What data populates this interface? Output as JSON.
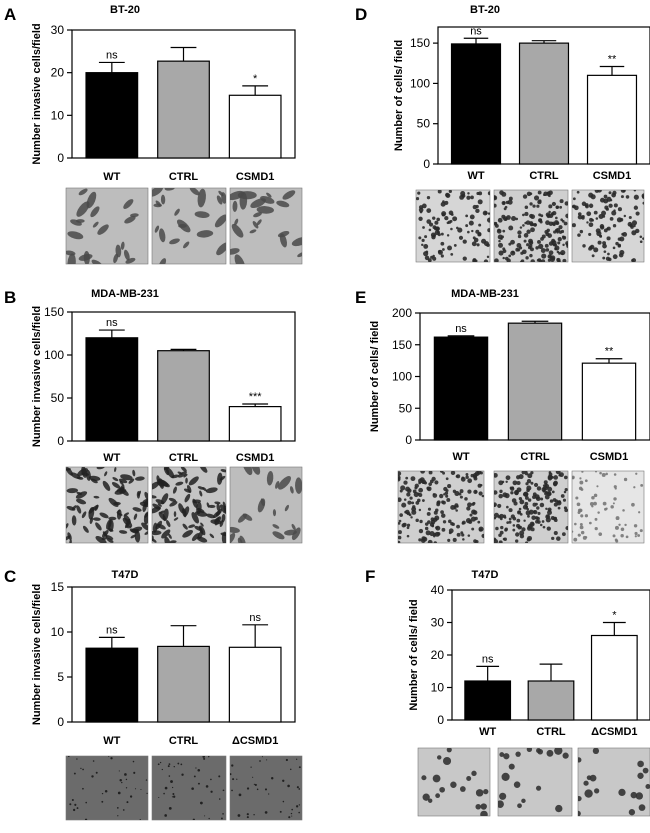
{
  "chart_data": [
    {
      "type": "bar",
      "panel": "A",
      "title": "BT-20",
      "ylabel": "Number invasive cells/field",
      "categories": [
        "WT",
        "CTRL",
        "CSMD1"
      ],
      "values": [
        20,
        22.7,
        14.7
      ],
      "errors": [
        2.4,
        3.2,
        2.2
      ],
      "significance": [
        "ns",
        "",
        "*"
      ],
      "ylim": [
        0,
        30
      ],
      "yticks": [
        0,
        10,
        20,
        30
      ],
      "colors": [
        "#000000",
        "#a8a8a8",
        "#ffffff"
      ],
      "micrograph_style": [
        "invasive",
        "invasive",
        "invasive"
      ]
    },
    {
      "type": "bar",
      "panel": "B",
      "title": "MDA-MB-231",
      "ylabel": "Number invasive cells/field",
      "categories": [
        "WT",
        "CTRL",
        "CSMD1"
      ],
      "values": [
        120,
        105,
        40
      ],
      "errors": [
        9,
        1.5,
        3
      ],
      "significance": [
        "ns",
        "",
        "***"
      ],
      "ylim": [
        0,
        150
      ],
      "yticks": [
        0,
        50,
        100,
        150
      ],
      "colors": [
        "#000000",
        "#a8a8a8",
        "#ffffff"
      ],
      "micrograph_style": [
        "invasive-dense",
        "invasive-dense",
        "invasive"
      ]
    },
    {
      "type": "bar",
      "panel": "C",
      "title": "T47D",
      "ylabel": "Number invasive cells/field",
      "categories": [
        "WT",
        "CTRL",
        "ΔCSMD1"
      ],
      "values": [
        8.2,
        8.4,
        8.3
      ],
      "errors": [
        1.2,
        2.3,
        2.5
      ],
      "significance": [
        "ns",
        "",
        "ns"
      ],
      "ylim": [
        0,
        15
      ],
      "yticks": [
        0,
        5,
        10,
        15
      ],
      "colors": [
        "#000000",
        "#a8a8a8",
        "#ffffff"
      ],
      "micrograph_style": [
        "dark",
        "dark",
        "dark"
      ]
    },
    {
      "type": "bar",
      "panel": "D",
      "title": "BT-20",
      "ylabel": "Number of cells/ field",
      "categories": [
        "WT",
        "CTRL",
        "CSMD1"
      ],
      "values": [
        149,
        150,
        110
      ],
      "errors": [
        7,
        3,
        11
      ],
      "significance": [
        "ns",
        "",
        "**"
      ],
      "ylim": [
        0,
        170
      ],
      "yticks": [
        0,
        50,
        100,
        150
      ],
      "colors": [
        "#000000",
        "#a8a8a8",
        "#ffffff"
      ],
      "micrograph_style": [
        "dots",
        "dots-dense",
        "dots"
      ]
    },
    {
      "type": "bar",
      "panel": "E",
      "title": "MDA-MB-231",
      "ylabel": "Number of cells/ field",
      "categories": [
        "WT",
        "CTRL",
        "CSMD1"
      ],
      "values": [
        162,
        184,
        121
      ],
      "errors": [
        2,
        3,
        7
      ],
      "significance": [
        "ns",
        "",
        "**"
      ],
      "ylim": [
        0,
        200
      ],
      "yticks": [
        0,
        50,
        100,
        150,
        200
      ],
      "colors": [
        "#000000",
        "#a8a8a8",
        "#ffffff"
      ],
      "micrograph_style": [
        "dots-dense",
        "dots-dense",
        "dots-light"
      ]
    },
    {
      "type": "bar",
      "panel": "F",
      "title": "T47D",
      "ylabel": "Number of cells/ field",
      "categories": [
        "WT",
        "CTRL",
        "ΔCSMD1"
      ],
      "values": [
        12,
        12,
        26
      ],
      "errors": [
        4.5,
        5.2,
        4
      ],
      "significance": [
        "ns",
        "",
        "*"
      ],
      "ylim": [
        0,
        40
      ],
      "yticks": [
        0,
        10,
        20,
        30,
        40
      ],
      "colors": [
        "#000000",
        "#a8a8a8",
        "#ffffff"
      ],
      "micrograph_style": [
        "cells-large",
        "cells-large",
        "cells-large"
      ]
    }
  ]
}
